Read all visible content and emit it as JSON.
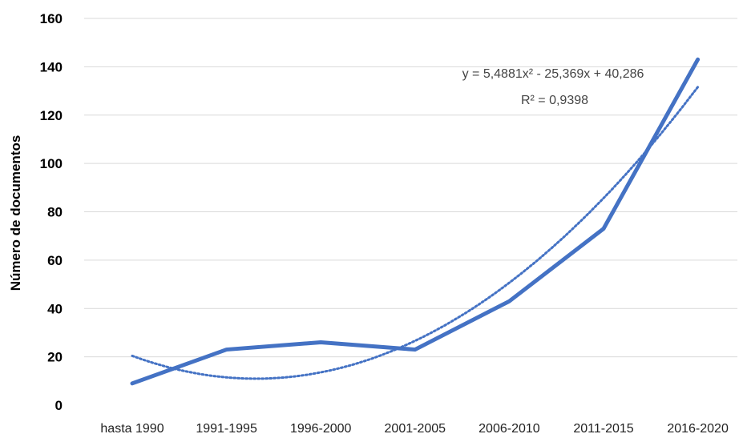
{
  "chart_data": {
    "type": "line",
    "title": "",
    "xlabel": "",
    "ylabel": "Número de documentos",
    "categories": [
      "hasta 1990",
      "1991-1995",
      "1996-2000",
      "2001-2005",
      "2006-2010",
      "2011-2015",
      "2016-2020"
    ],
    "series": [
      {
        "values": [
          9,
          23,
          26,
          23,
          43,
          73,
          143
        ],
        "color": "#4472c4",
        "style": "solid"
      }
    ],
    "trendline": {
      "type": "polynomial",
      "order": 2,
      "coefficients": {
        "a": 5.4881,
        "b": -25.369,
        "c": 40.286
      },
      "equation": "y = 5,4881x² - 25,369x + 40,286",
      "r_squared": "R² = 0,9398",
      "color": "#4472c4",
      "style": "dotted"
    },
    "ylim": [
      0,
      160
    ],
    "yticks": [
      0,
      20,
      40,
      60,
      80,
      100,
      120,
      140,
      160
    ],
    "grid": true,
    "legend": "none"
  }
}
